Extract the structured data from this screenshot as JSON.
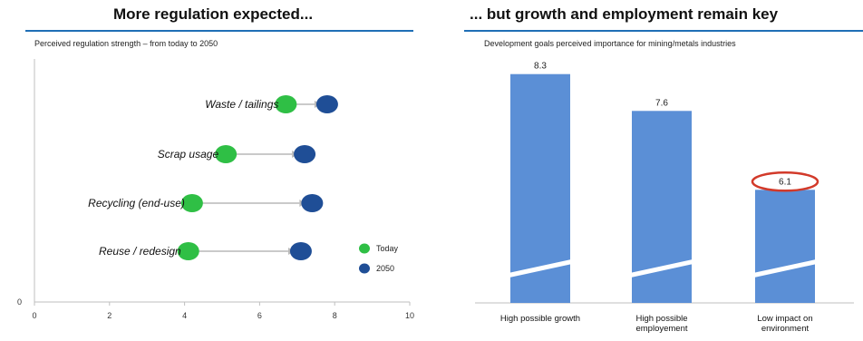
{
  "left_panel": {
    "title": "More regulation expected...",
    "subtitle": "Perceived regulation strength – from today to 2050"
  },
  "right_panel": {
    "title": "... but growth and employment remain key",
    "subtitle": "Development goals perceived importance for mining/metals industries"
  },
  "colors": {
    "today": "#2fbf45",
    "y2050": "#1f4e96",
    "bar": "#5b8fd6",
    "rule": "#1f6fb6",
    "highlight": "#d23a2a"
  },
  "chart_data": [
    {
      "type": "scatter",
      "title": "More regulation expected...",
      "subtitle": "Perceived regulation strength – from today to 2050",
      "xlim": [
        0,
        10
      ],
      "x_ticks": [
        "0",
        "2",
        "4",
        "6",
        "8",
        "10"
      ],
      "y_ticks": [
        "0"
      ],
      "grid": false,
      "legend_placement": "right",
      "categories": [
        "Waste / tailings",
        "Scrap usage",
        "Recycling (end-use)",
        "Reuse / redesign"
      ],
      "series": [
        {
          "name": "Today",
          "values": [
            6.7,
            5.1,
            4.2,
            4.1
          ]
        },
        {
          "name": "2050",
          "values": [
            7.8,
            7.2,
            7.4,
            7.1
          ]
        }
      ]
    },
    {
      "type": "bar",
      "title": "... but growth and employment remain key",
      "subtitle": "Development goals perceived importance for mining/metals industries",
      "categories": [
        "High possible growth",
        "High possible employement",
        "Low impact on environment"
      ],
      "values": [
        8.3,
        7.6,
        6.1
      ],
      "data_labels": [
        "8.3",
        "7.6",
        "6.1"
      ],
      "axis_break": true,
      "highlighted": "Low impact on environment"
    }
  ]
}
